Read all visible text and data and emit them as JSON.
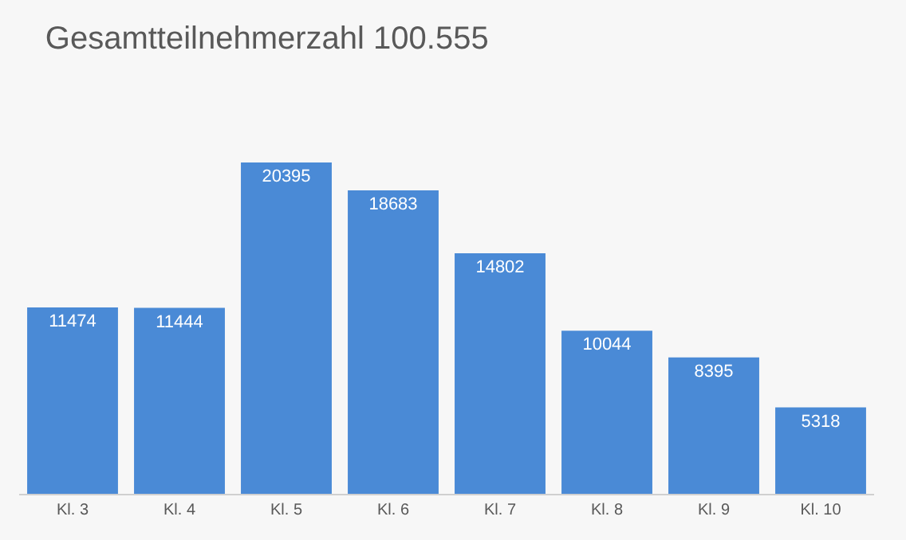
{
  "chart_data": {
    "type": "bar",
    "title": "Gesamtteilnehmerzahl 100.555",
    "categories": [
      "Kl. 3",
      "Kl. 4",
      "Kl. 5",
      "Kl. 6",
      "Kl. 7",
      "Kl. 8",
      "Kl. 9",
      "Kl. 10"
    ],
    "values": [
      11474,
      11444,
      20395,
      18683,
      14802,
      10044,
      8395,
      5318
    ],
    "color": "#4a8ad6",
    "data_labels": true,
    "grid": false,
    "legend": false
  }
}
